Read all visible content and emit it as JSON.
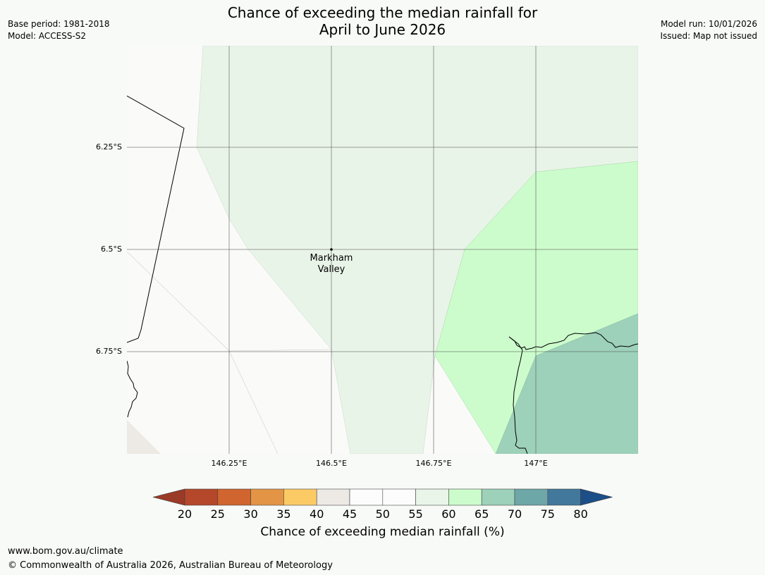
{
  "title": {
    "line1": "Chance of exceeding the median rainfall for",
    "line2": "April to June 2026"
  },
  "meta_left": {
    "base_period": "Base period: 1981-2018",
    "model": "Model: ACCESS-S2"
  },
  "meta_right": {
    "model_run": "Model run: 10/01/2026",
    "issued": "Issued: Map not issued"
  },
  "map": {
    "lat_labels": [
      "6.25°S",
      "6.5°S",
      "6.75°S"
    ],
    "lon_labels": [
      "146.25°E",
      "146.5°E",
      "146.75°E",
      "147°E"
    ],
    "place": {
      "line1": "Markham",
      "line2": "Valley"
    }
  },
  "colorbar": {
    "ticks": [
      "20",
      "25",
      "30",
      "35",
      "40",
      "45",
      "50",
      "55",
      "60",
      "65",
      "70",
      "75",
      "80"
    ],
    "colors": [
      "#9b3a26",
      "#b5472a",
      "#d0652f",
      "#e39545",
      "#fcca65",
      "#ede9e4",
      "#fcfcfc",
      "#fcfcfc",
      "#e8f5e8",
      "#ccfccc",
      "#9dd1b9",
      "#6da7a7",
      "#42789c",
      "#1c4e87"
    ],
    "label": "Chance of exceeding median rainfall (%)"
  },
  "footer": {
    "url": "www.bom.gov.au/climate",
    "copyright": "© Commonwealth of Australia 2026, Australian Bureau of Meteorology"
  }
}
